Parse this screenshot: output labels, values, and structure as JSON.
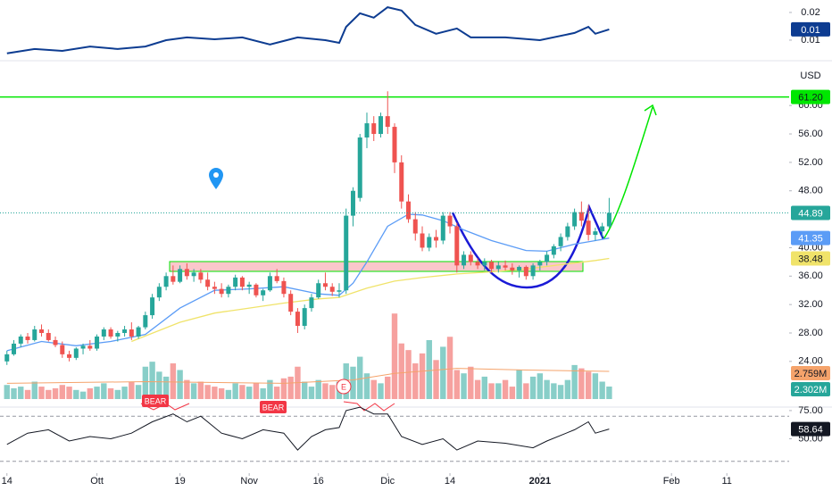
{
  "chart_data": [
    {
      "type": "line",
      "color": "#0d3c91",
      "xlim": [
        -1,
        113
      ],
      "ylim": [
        0.0045,
        0.0245
      ],
      "yticks": [
        0.02,
        0.01
      ],
      "x": [
        0,
        4,
        8,
        12,
        16,
        20,
        23,
        26,
        30,
        34,
        38,
        40,
        42,
        46,
        48,
        49,
        51,
        53,
        55,
        57,
        59,
        62,
        65,
        67,
        72,
        77,
        82,
        84,
        85,
        87
      ],
      "values": [
        0.0052,
        0.0068,
        0.0061,
        0.0077,
        0.0068,
        0.0077,
        0.01,
        0.011,
        0.0103,
        0.011,
        0.0084,
        0.0097,
        0.011,
        0.01,
        0.009,
        0.0148,
        0.0197,
        0.0181,
        0.0219,
        0.0207,
        0.0155,
        0.0123,
        0.0142,
        0.011,
        0.011,
        0.01,
        0.0126,
        0.0148,
        0.0123,
        0.0139
      ],
      "value_labels": [
        null,
        null,
        null,
        null,
        null,
        null,
        null,
        null,
        null,
        null,
        null,
        null,
        null,
        null,
        null,
        null,
        null,
        null,
        null,
        null,
        null,
        null,
        null,
        null,
        null,
        null,
        null,
        null,
        null,
        "0.01"
      ]
    },
    {
      "type": "candlestick",
      "currency": "USD",
      "up_color": "#26a69a",
      "down_color": "#ef5350",
      "xlim": [
        -1,
        113
      ],
      "ylim": [
        17.7,
        65.8
      ],
      "yticks": [
        {
          "value": 60,
          "label": "60.00"
        },
        {
          "value": 56,
          "label": "56.00"
        },
        {
          "value": 52,
          "label": "52.00"
        },
        {
          "value": 48,
          "label": "48.00"
        },
        {
          "value": 40,
          "label": "40.00"
        },
        {
          "value": 36,
          "label": "36.00"
        },
        {
          "value": 32,
          "label": "32.00"
        },
        {
          "value": 28,
          "label": "28.00"
        },
        {
          "value": 24,
          "label": "24.00"
        }
      ],
      "open": [
        24,
        25,
        26.5,
        27.5,
        27,
        28.5,
        28,
        27,
        26.3,
        25,
        24.5,
        25.8,
        26.2,
        25.8,
        27.5,
        28.5,
        27.5,
        28,
        28.5,
        27.5,
        28.8,
        30.5,
        33,
        34.5,
        36,
        35.2,
        37,
        36,
        36.5,
        35.5,
        34.5,
        34.2,
        33.5,
        34.5,
        35.8,
        34.5,
        34.8,
        33.3,
        34,
        36,
        35.3,
        33.5,
        31,
        29,
        31.5,
        33,
        35,
        34.5,
        33.8,
        34,
        44.5,
        47,
        55.5,
        57.5,
        56,
        58.5,
        57,
        52,
        46.5,
        44,
        42,
        40,
        41.5,
        41,
        44.5,
        43,
        37.5,
        39,
        38,
        37.5,
        38,
        37,
        37.5,
        37.2,
        36.8,
        37.3,
        36,
        37.5,
        38,
        39,
        40.2,
        41.5,
        43,
        45,
        43.8,
        41.8,
        42.3,
        43
      ],
      "high": [
        25.5,
        27,
        27.8,
        28,
        29,
        29.2,
        28.5,
        27.5,
        26.8,
        25.5,
        26,
        26.5,
        27,
        27.8,
        28.8,
        28.8,
        28.3,
        29,
        29.5,
        29,
        31,
        33.5,
        35,
        36.5,
        37.5,
        37.5,
        37.8,
        37,
        37,
        36.5,
        35.2,
        35,
        34.8,
        36.2,
        36,
        35.2,
        35,
        34.2,
        36.5,
        37,
        35.8,
        34,
        31.5,
        32,
        33.5,
        35.5,
        36.5,
        35,
        35,
        45.5,
        48.5,
        56,
        59,
        58.5,
        59,
        62,
        57.5,
        53,
        47.5,
        45,
        43,
        42,
        42.5,
        45,
        45,
        43.5,
        39.5,
        39.5,
        38.5,
        38.5,
        38.3,
        38,
        38.2,
        37.8,
        37.5,
        37.5,
        37.8,
        38.3,
        39.5,
        40.5,
        42,
        43.5,
        45.5,
        46.5,
        46,
        42.8,
        43.5,
        47
      ],
      "low": [
        23.5,
        24.8,
        26,
        26.5,
        26.8,
        27.5,
        26.8,
        26,
        24.5,
        24,
        24.2,
        25,
        25.5,
        25.5,
        27,
        27.2,
        26.8,
        27.5,
        27,
        27.2,
        28.5,
        30,
        32.5,
        34,
        34.8,
        35,
        35.5,
        35.2,
        35,
        34,
        33.5,
        33,
        33,
        34,
        34,
        33.5,
        33,
        32.5,
        33.8,
        35,
        33,
        30.5,
        28,
        28.5,
        31,
        32.8,
        34,
        33.2,
        33,
        33.5,
        43,
        46.5,
        54,
        55,
        55.5,
        56,
        50.5,
        45.5,
        43.5,
        41,
        39.5,
        39.5,
        40,
        40.5,
        42,
        36.5,
        37,
        37.5,
        37,
        36.8,
        36.5,
        36.5,
        36.8,
        36.2,
        35.8,
        35.5,
        35.5,
        36.8,
        37.5,
        38.5,
        39.5,
        41,
        42.5,
        43,
        41,
        41,
        41.5,
        42.8
      ],
      "close": [
        25,
        26.5,
        27.5,
        27,
        28.5,
        28,
        27,
        26.3,
        25,
        24.5,
        25.8,
        26.2,
        25.8,
        27.5,
        28.5,
        27.5,
        28,
        28.5,
        27.5,
        28.8,
        30.5,
        33,
        34.5,
        36,
        35.2,
        37,
        36,
        36.5,
        35.5,
        34.5,
        34.2,
        33.5,
        34.5,
        35.8,
        34.5,
        34.8,
        33.3,
        34,
        36,
        35.3,
        33.5,
        31,
        29,
        31.5,
        33,
        35,
        34.5,
        33.8,
        34,
        44.5,
        48,
        55.5,
        57.5,
        56,
        58.5,
        57,
        52,
        46.5,
        44,
        42,
        40,
        41.5,
        41,
        44.5,
        43,
        37.5,
        39,
        38,
        37.5,
        38,
        37,
        37.5,
        37.2,
        36.8,
        37.3,
        36,
        37.5,
        38,
        39,
        40.2,
        41.5,
        43,
        45,
        43.8,
        41.8,
        42.3,
        43,
        44.89
      ],
      "ma": [
        {
          "color": "#5b9cf6",
          "x": [
            0,
            5,
            10,
            15,
            20,
            25,
            30,
            35,
            40,
            45,
            48,
            50,
            52,
            55,
            58,
            60,
            63,
            66,
            70,
            75,
            78,
            82,
            85,
            87
          ],
          "values": [
            25.5,
            26.8,
            26.2,
            26.8,
            27.8,
            31.5,
            34,
            34.2,
            34.5,
            33.5,
            33.3,
            35,
            38,
            43,
            44.7,
            44.6,
            43.8,
            42.5,
            41,
            39.6,
            39.5,
            40.5,
            41,
            41.35
          ]
        },
        {
          "color": "#f0e36a",
          "x": [
            18,
            25,
            30,
            35,
            40,
            45,
            48,
            52,
            56,
            60,
            65,
            70,
            75,
            80,
            85,
            87
          ],
          "values": [
            26.8,
            29.5,
            30.8,
            31.5,
            32.2,
            32.8,
            33,
            34.3,
            35.3,
            35.8,
            36.3,
            36.6,
            37,
            37.6,
            38.2,
            38.48
          ]
        }
      ],
      "hlines": [
        {
          "value": 61.2,
          "label": "61.20",
          "color": "#00e600"
        }
      ],
      "volume": {
        "ylim": [
          1.926,
          5.0
        ],
        "values": [
          2.35,
          2.25,
          2.3,
          2.2,
          2.45,
          2.3,
          2.2,
          2.25,
          2.35,
          2.3,
          2.2,
          2.15,
          2.25,
          2.3,
          2.4,
          2.25,
          2.2,
          2.3,
          2.45,
          2.35,
          2.9,
          3.05,
          2.75,
          2.6,
          3.0,
          2.8,
          2.5,
          2.4,
          2.45,
          2.35,
          2.3,
          2.25,
          2.2,
          2.4,
          2.35,
          2.3,
          2.4,
          2.25,
          2.5,
          2.3,
          2.55,
          2.6,
          2.9,
          2.45,
          2.3,
          2.5,
          2.4,
          2.35,
          2.45,
          3.0,
          2.9,
          3.2,
          2.7,
          2.5,
          2.4,
          2.6,
          4.5,
          3.6,
          3.4,
          3.0,
          3.3,
          3.7,
          3.1,
          3.5,
          3.8,
          2.8,
          2.7,
          2.9,
          2.5,
          2.6,
          2.4,
          2.4,
          2.5,
          2.3,
          2.8,
          2.4,
          2.6,
          2.7,
          2.5,
          2.4,
          2.35,
          2.5,
          2.95,
          2.85,
          2.75,
          2.7,
          2.45,
          2.302
        ],
        "value_labels": [
          null,
          null,
          null,
          null,
          null,
          null,
          null,
          null,
          null,
          null,
          null,
          null,
          null,
          null,
          null,
          null,
          null,
          null,
          null,
          null,
          null,
          null,
          null,
          null,
          null,
          null,
          null,
          null,
          null,
          null,
          null,
          null,
          null,
          null,
          null,
          null,
          null,
          null,
          null,
          null,
          null,
          null,
          null,
          null,
          null,
          null,
          null,
          null,
          null,
          null,
          null,
          null,
          null,
          null,
          null,
          null,
          null,
          null,
          null,
          null,
          null,
          null,
          null,
          null,
          null,
          null,
          null,
          null,
          null,
          null,
          null,
          null,
          null,
          null,
          null,
          null,
          null,
          null,
          null,
          null,
          null,
          null,
          null,
          null,
          null,
          null,
          null,
          "2.302M"
        ]
      },
      "volume_ma": {
        "color": "#f5a36b",
        "x": [
          0,
          20,
          40,
          50,
          56,
          65,
          75,
          87
        ],
        "values": [
          2.4,
          2.45,
          2.4,
          2.5,
          2.7,
          2.85,
          2.8,
          2.759
        ],
        "value_labels": [
          null,
          null,
          null,
          null,
          null,
          null,
          null,
          "2.759M"
        ]
      },
      "annotations": [
        "BEAR",
        "BEAR",
        "E"
      ]
    },
    {
      "type": "line",
      "color": "#131722",
      "xlim": [
        -1,
        113
      ],
      "ylim": [
        21.1,
        77.3
      ],
      "yticks": [
        {
          "value": 75,
          "label": "75.00"
        },
        {
          "value": 50,
          "label": "50.00"
        }
      ],
      "levels": [
        70,
        30
      ],
      "x": [
        0,
        3,
        6,
        9,
        12,
        15,
        18,
        21,
        24,
        26,
        28,
        31,
        34,
        37,
        40,
        42,
        44,
        46,
        48,
        49,
        51,
        53,
        55,
        57,
        60,
        63,
        65,
        68,
        72,
        76,
        78,
        82,
        84,
        85,
        87
      ],
      "values": [
        45,
        55,
        58,
        48,
        52,
        50,
        55,
        65,
        72,
        65,
        70,
        55,
        50,
        58,
        55,
        40,
        52,
        58,
        60,
        75,
        78,
        72,
        72,
        52,
        45,
        50,
        40,
        48,
        46,
        42,
        48,
        58,
        65,
        55,
        58.64
      ],
      "xticks": [
        {
          "value": 0,
          "label": "14"
        },
        {
          "value": 13,
          "label": "Ott"
        },
        {
          "value": 25,
          "label": "19"
        },
        {
          "value": 35,
          "label": "Nov"
        },
        {
          "value": 45,
          "label": "16"
        },
        {
          "value": 55,
          "label": "Dic"
        },
        {
          "value": 64,
          "label": "14"
        },
        {
          "value": 77,
          "label": "2021"
        },
        {
          "value": 96,
          "label": "Feb"
        },
        {
          "value": 104,
          "label": "11"
        }
      ]
    }
  ]
}
